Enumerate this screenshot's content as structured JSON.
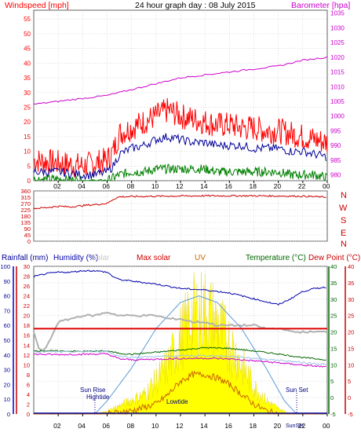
{
  "title": "24 hour graph day : 08 July 2015",
  "x_ticks": [
    "02",
    "04",
    "06",
    "08",
    "10",
    "12",
    "14",
    "16",
    "18",
    "20",
    "22",
    "00"
  ],
  "colors": {
    "windspeed": "#ff0000",
    "windavg": "#000099",
    "windlow": "#008000",
    "barometer": "#cc00cc",
    "winddir": "#cc0000",
    "humidity": "#0000aa",
    "solar": "#ffff00",
    "maxsolar": "#5a9bd5",
    "uv": "#cc6600",
    "temperature": "#006600",
    "dewpoint": "#ff0000",
    "rain": "#000099",
    "grid": "#c8c8c8",
    "frame": "#606060"
  },
  "chart_data": [
    {
      "type": "line",
      "panel": "wind-barometer",
      "y_left_label": "Windspeed [mph]",
      "y_right_label": "Barometer [hpa]",
      "y_left_ticks": [
        "0",
        "5",
        "10",
        "15",
        "20",
        "25",
        "30",
        "35",
        "40",
        "45",
        "50",
        "55"
      ],
      "y_right_ticks": [
        "980",
        "985",
        "990",
        "995",
        "1000",
        "1005",
        "1010",
        "1015",
        "1020",
        "1025",
        "1030",
        "1035"
      ],
      "ylim_left": [
        0,
        58
      ],
      "ylim_right": [
        978,
        1036
      ],
      "x_hours": [
        0,
        24
      ],
      "series": [
        {
          "key": "gust",
          "hours": [
            0,
            2,
            4,
            5,
            6,
            6.5,
            7,
            8,
            9,
            10,
            11,
            12,
            13,
            14,
            15,
            16,
            17,
            18,
            19,
            20,
            21,
            22,
            23,
            24
          ],
          "values": [
            7,
            6,
            5,
            6,
            7,
            10,
            16,
            18,
            20,
            22,
            24,
            22,
            21,
            20,
            19,
            19,
            18,
            18,
            17,
            17,
            16,
            15,
            14,
            13
          ]
        },
        {
          "key": "average",
          "hours": [
            0,
            2,
            4,
            5,
            6,
            6.5,
            7,
            8,
            9,
            10,
            11,
            12,
            13,
            14,
            15,
            16,
            17,
            18,
            19,
            20,
            21,
            22,
            23,
            24
          ],
          "values": [
            3,
            3,
            2,
            2,
            3,
            5,
            9,
            11,
            12,
            14,
            15,
            14,
            13,
            13,
            12,
            12,
            12,
            11,
            11,
            11,
            10,
            10,
            9,
            8
          ]
        },
        {
          "key": "lull",
          "hours": [
            0,
            2,
            4,
            5,
            6,
            6.5,
            7,
            8,
            9,
            10,
            11,
            12,
            13,
            14,
            15,
            16,
            17,
            18,
            19,
            20,
            21,
            22,
            23,
            24
          ],
          "values": [
            0.5,
            0.5,
            0,
            0,
            0,
            1,
            2,
            3,
            3,
            4,
            4,
            4,
            4,
            4,
            3,
            3,
            3,
            3,
            3,
            3,
            2,
            2,
            2,
            1
          ]
        },
        {
          "key": "barometer",
          "hours": [
            0,
            2,
            4,
            6,
            8,
            10,
            11,
            12,
            14,
            16,
            18,
            20,
            22,
            24
          ],
          "values": [
            1004,
            1005,
            1006,
            1007,
            1009,
            1011,
            1012,
            1013,
            1014,
            1015,
            1016,
            1017,
            1019,
            1020
          ]
        }
      ]
    },
    {
      "type": "line",
      "panel": "wind-direction",
      "y_ticks": [
        "0",
        "45",
        "90",
        "135",
        "180",
        "225",
        "270",
        "315",
        "360"
      ],
      "ylim": [
        0,
        360
      ],
      "compass_labels": [
        "N",
        "W",
        "S",
        "E",
        "N"
      ],
      "series": [
        {
          "key": "direction",
          "hours": [
            0,
            1,
            2,
            3,
            4,
            5,
            6,
            6.5,
            7,
            10,
            14,
            18,
            22,
            24
          ],
          "values": [
            235,
            240,
            250,
            245,
            255,
            262,
            270,
            300,
            318,
            322,
            325,
            325,
            322,
            315
          ]
        }
      ]
    },
    {
      "type": "line",
      "panel": "temperature-humidity",
      "header_labels": {
        "rainfall": "Rainfall (mm)",
        "humidity": "Humidity (%)",
        "solar": "Solar",
        "maxsolar": "Max solar",
        "uv": "UV",
        "temperature": "Temperature (°C)",
        "dewpoint": "Dew Point (°C)"
      },
      "y_rain_ticks": [
        "0",
        "10",
        "20",
        "30",
        "40",
        "50",
        "60",
        "70",
        "80",
        "90",
        "100"
      ],
      "y_humidity_ticks": [
        "0",
        "2",
        "4",
        "6",
        "8",
        "10",
        "12",
        "14",
        "16",
        "18",
        "20",
        "22",
        "24",
        "26",
        "28",
        "30"
      ],
      "y_temp_ticks": [
        "-5",
        "0",
        "5",
        "10",
        "15",
        "20",
        "25",
        "30",
        "35",
        "40"
      ],
      "ylim_temp": [
        -5,
        40
      ],
      "ylim_humidity": [
        0,
        100
      ],
      "annotations": [
        "Sun Rise",
        "Hightide",
        "Lowtide",
        "Sun Set",
        "SunSet"
      ],
      "series": [
        {
          "key": "humidity",
          "hours": [
            0,
            1,
            2,
            3,
            4,
            5,
            6,
            6.5,
            7,
            8,
            10,
            12,
            14,
            16,
            17,
            18,
            19,
            20,
            21,
            22,
            23,
            24
          ],
          "values": [
            93,
            95,
            96,
            96,
            97,
            97,
            96,
            93,
            91,
            90,
            88,
            85,
            84,
            82,
            80,
            78,
            76,
            74,
            78,
            83,
            85,
            86
          ]
        },
        {
          "key": "temperature",
          "hours": [
            0,
            2,
            4,
            6,
            7,
            8,
            10,
            12,
            14,
            16,
            18,
            20,
            22,
            24
          ],
          "values": [
            14.3,
            14.2,
            14.1,
            14.2,
            13.5,
            13.2,
            13.8,
            14.5,
            15.2,
            15,
            14.2,
            13.3,
            12.2,
            11.5
          ]
        },
        {
          "key": "dewpoint",
          "hours": [
            0,
            2,
            4,
            6,
            7,
            8,
            10,
            12,
            14,
            16,
            18,
            20,
            22,
            24
          ],
          "values": [
            13.2,
            13.1,
            13.2,
            13.3,
            11.8,
            11.5,
            11.7,
            11.9,
            12,
            11.8,
            11.2,
            10.6,
            9.9,
            9.3
          ]
        },
        {
          "key": "solar_upper",
          "hours": [
            0,
            0.5,
            1,
            2,
            3,
            4,
            5,
            6,
            7,
            8,
            9,
            10,
            11,
            12,
            13,
            14,
            15,
            16,
            17,
            18,
            19,
            20,
            20.5,
            21
          ],
          "values": [
            20,
            14,
            15,
            23,
            24,
            25,
            25,
            26,
            25,
            25,
            25,
            25,
            24,
            24,
            23,
            23,
            22,
            22,
            22,
            22,
            21,
            21,
            21,
            20
          ]
        },
        {
          "key": "maxsolar_range",
          "hours": [
            0,
            24
          ],
          "values": [
            21,
            21
          ]
        },
        {
          "key": "solar",
          "hours": [
            5,
            6,
            7,
            8,
            9,
            10,
            11,
            12,
            13,
            14,
            15,
            16,
            17,
            18,
            19,
            20,
            21
          ],
          "values": [
            0,
            1,
            3,
            5,
            7,
            12,
            18,
            28,
            36,
            38,
            33,
            26,
            18,
            10,
            5,
            2,
            0
          ]
        },
        {
          "key": "maxsolar",
          "hours": [
            5,
            6,
            8,
            10,
            12,
            13.5,
            15,
            17,
            19,
            20.5,
            21.5
          ],
          "values": [
            0,
            4,
            14,
            26,
            34,
            36,
            34,
            26,
            14,
            4,
            0
          ]
        },
        {
          "key": "uv",
          "hours": [
            6,
            8,
            10,
            11,
            12,
            13,
            14,
            15,
            16,
            17,
            18,
            19,
            20
          ],
          "values": [
            0,
            1,
            3,
            6,
            10,
            12,
            12,
            11,
            9,
            6,
            3,
            1,
            0
          ]
        }
      ]
    }
  ]
}
